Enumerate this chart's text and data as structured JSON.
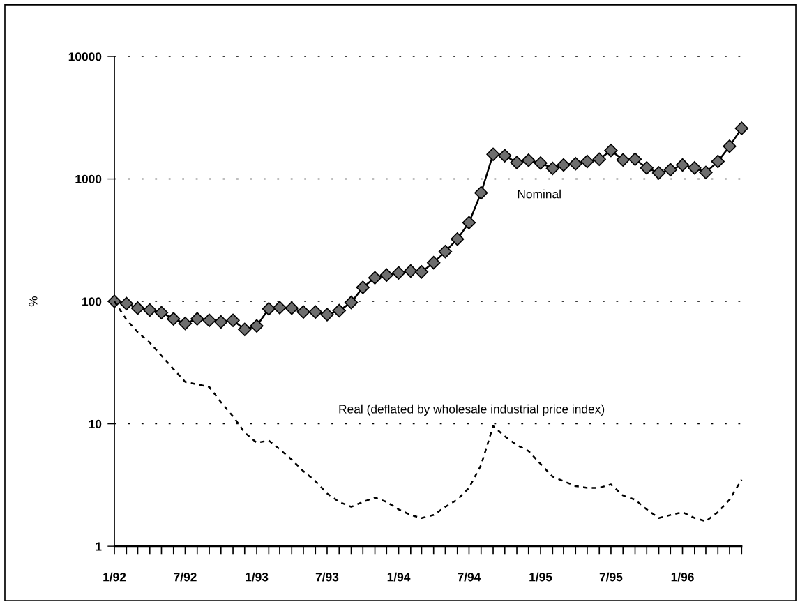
{
  "chart_data": {
    "type": "line",
    "ylabel": "%",
    "x": [
      "1992-01",
      "1992-02",
      "1992-03",
      "1992-04",
      "1992-05",
      "1992-06",
      "1992-07",
      "1992-08",
      "1992-09",
      "1992-10",
      "1992-11",
      "1992-12",
      "1993-01",
      "1993-02",
      "1993-03",
      "1993-04",
      "1993-05",
      "1993-06",
      "1993-07",
      "1993-08",
      "1993-09",
      "1993-10",
      "1993-11",
      "1993-12",
      "1994-01",
      "1994-02",
      "1994-03",
      "1994-04",
      "1994-05",
      "1994-06",
      "1994-07",
      "1994-08",
      "1994-09",
      "1994-10",
      "1994-11",
      "1994-12",
      "1995-01",
      "1995-02",
      "1995-03",
      "1995-04",
      "1995-05",
      "1995-06",
      "1995-07",
      "1995-08",
      "1995-09",
      "1995-10",
      "1995-11",
      "1995-12",
      "1996-01",
      "1996-02",
      "1996-03",
      "1996-04",
      "1996-05",
      "1996-06"
    ],
    "series": [
      {
        "name": "Nominal",
        "color": "#000000",
        "marker": "diamond",
        "line_style": "solid",
        "values": [
          100,
          96,
          88,
          85,
          81,
          72,
          66,
          72,
          70,
          68,
          70,
          59,
          63,
          87,
          89,
          88,
          82,
          82,
          78,
          84,
          98,
          130,
          156,
          164,
          171,
          177,
          174,
          207,
          255,
          323,
          440,
          770,
          1590,
          1550,
          1360,
          1420,
          1350,
          1220,
          1300,
          1330,
          1390,
          1450,
          1710,
          1430,
          1450,
          1230,
          1120,
          1190,
          1300,
          1230,
          1130,
          1390,
          1850,
          2590
        ]
      },
      {
        "name": "Real (deflated by wholesale industrial price index)",
        "color": "#000000",
        "marker": "none",
        "line_style": "dashed",
        "values": [
          100,
          71,
          56,
          46,
          36,
          28,
          22,
          21,
          20,
          15,
          11.5,
          8.5,
          7.0,
          7.3,
          6.2,
          5.1,
          4.1,
          3.4,
          2.7,
          2.3,
          2.1,
          2.3,
          2.5,
          2.3,
          2.0,
          1.8,
          1.7,
          1.8,
          2.1,
          2.4,
          3.0,
          4.6,
          9.6,
          7.9,
          6.7,
          6.0,
          4.7,
          3.7,
          3.4,
          3.1,
          3.0,
          3.0,
          3.2,
          2.6,
          2.4,
          2.0,
          1.7,
          1.8,
          1.9,
          1.7,
          1.6,
          1.9,
          2.4,
          3.5
        ]
      }
    ],
    "xlim": [
      "1992-01",
      "1996-06"
    ],
    "xticks": [
      {
        "value": "1992-01",
        "label": "1/92"
      },
      {
        "value": "1992-02",
        "label": null
      },
      {
        "value": "1992-03",
        "label": null
      },
      {
        "value": "1992-04",
        "label": null
      },
      {
        "value": "1992-05",
        "label": null
      },
      {
        "value": "1992-06",
        "label": null
      },
      {
        "value": "1992-07",
        "label": "7/92"
      },
      {
        "value": "1992-08",
        "label": null
      },
      {
        "value": "1992-09",
        "label": null
      },
      {
        "value": "1992-10",
        "label": null
      },
      {
        "value": "1992-11",
        "label": null
      },
      {
        "value": "1992-12",
        "label": null
      },
      {
        "value": "1993-01",
        "label": "1/93"
      },
      {
        "value": "1993-02",
        "label": null
      },
      {
        "value": "1993-03",
        "label": null
      },
      {
        "value": "1993-04",
        "label": null
      },
      {
        "value": "1993-05",
        "label": null
      },
      {
        "value": "1993-06",
        "label": null
      },
      {
        "value": "1993-07",
        "label": "7/93"
      },
      {
        "value": "1993-08",
        "label": null
      },
      {
        "value": "1993-09",
        "label": null
      },
      {
        "value": "1993-10",
        "label": null
      },
      {
        "value": "1993-11",
        "label": null
      },
      {
        "value": "1993-12",
        "label": null
      },
      {
        "value": "1994-01",
        "label": "1/94"
      },
      {
        "value": "1994-02",
        "label": null
      },
      {
        "value": "1994-03",
        "label": null
      },
      {
        "value": "1994-04",
        "label": null
      },
      {
        "value": "1994-05",
        "label": null
      },
      {
        "value": "1994-06",
        "label": null
      },
      {
        "value": "1994-07",
        "label": "7/94"
      },
      {
        "value": "1994-08",
        "label": null
      },
      {
        "value": "1994-09",
        "label": null
      },
      {
        "value": "1994-10",
        "label": null
      },
      {
        "value": "1994-11",
        "label": null
      },
      {
        "value": "1994-12",
        "label": null
      },
      {
        "value": "1995-01",
        "label": "1/95"
      },
      {
        "value": "1995-02",
        "label": null
      },
      {
        "value": "1995-03",
        "label": null
      },
      {
        "value": "1995-04",
        "label": null
      },
      {
        "value": "1995-05",
        "label": null
      },
      {
        "value": "1995-06",
        "label": null
      },
      {
        "value": "1995-07",
        "label": "7/95"
      },
      {
        "value": "1995-08",
        "label": null
      },
      {
        "value": "1995-09",
        "label": null
      },
      {
        "value": "1995-10",
        "label": null
      },
      {
        "value": "1995-11",
        "label": null
      },
      {
        "value": "1995-12",
        "label": null
      },
      {
        "value": "1996-01",
        "label": "1/96"
      },
      {
        "value": "1996-02",
        "label": null
      },
      {
        "value": "1996-03",
        "label": null
      },
      {
        "value": "1996-04",
        "label": null
      },
      {
        "value": "1996-05",
        "label": null
      },
      {
        "value": "1996-06",
        "label": null
      }
    ],
    "log": true,
    "ylim": [
      1,
      10000
    ],
    "yticks": [
      1,
      10,
      100,
      1000,
      10000
    ],
    "grid": "y"
  }
}
